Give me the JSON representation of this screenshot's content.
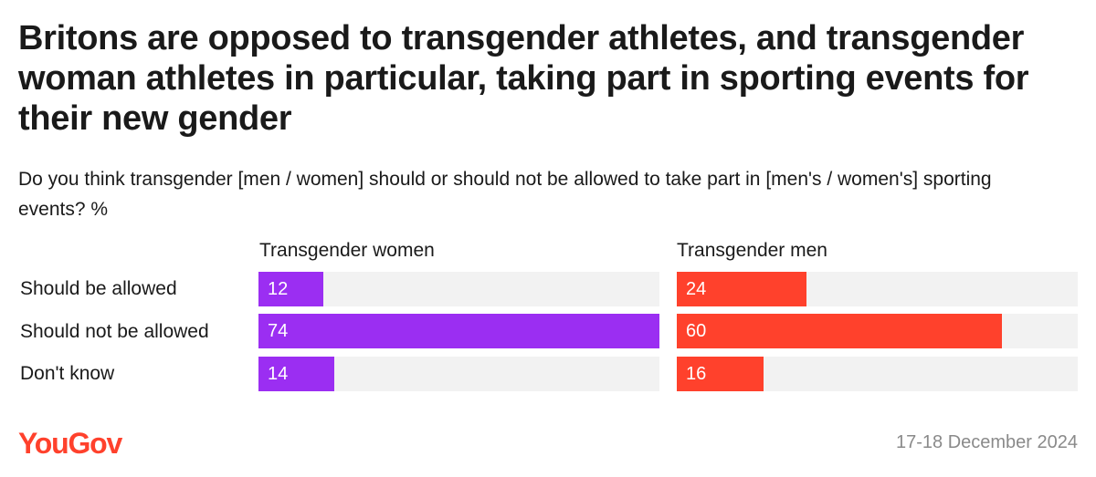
{
  "title": "Britons are opposed to transgender athletes, and transgender woman athletes in particular, taking part in sporting events for their new gender",
  "subtitle": "Do you think transgender [men / women] should or should not be allowed to take part in [men's / women's] sporting events? %",
  "footer": {
    "brand": "YouGov",
    "date": "17-18 December 2024"
  },
  "colors": {
    "women": "#9b2ef2",
    "men": "#ff412c",
    "track": "#f2f2f2",
    "brand": "#ff412c"
  },
  "chart_data": {
    "type": "bar",
    "orientation": "horizontal",
    "title": "Britons are opposed to transgender athletes, and transgender woman athletes in particular, taking part in sporting events for their new gender",
    "categories": [
      "Should be allowed",
      "Should not be allowed",
      "Don't know"
    ],
    "xlim": [
      0,
      74
    ],
    "series": [
      {
        "name": "Transgender women",
        "values": [
          12,
          74,
          14
        ],
        "color": "#9b2ef2"
      },
      {
        "name": "Transgender men",
        "values": [
          24,
          60,
          16
        ],
        "color": "#ff412c"
      }
    ]
  }
}
